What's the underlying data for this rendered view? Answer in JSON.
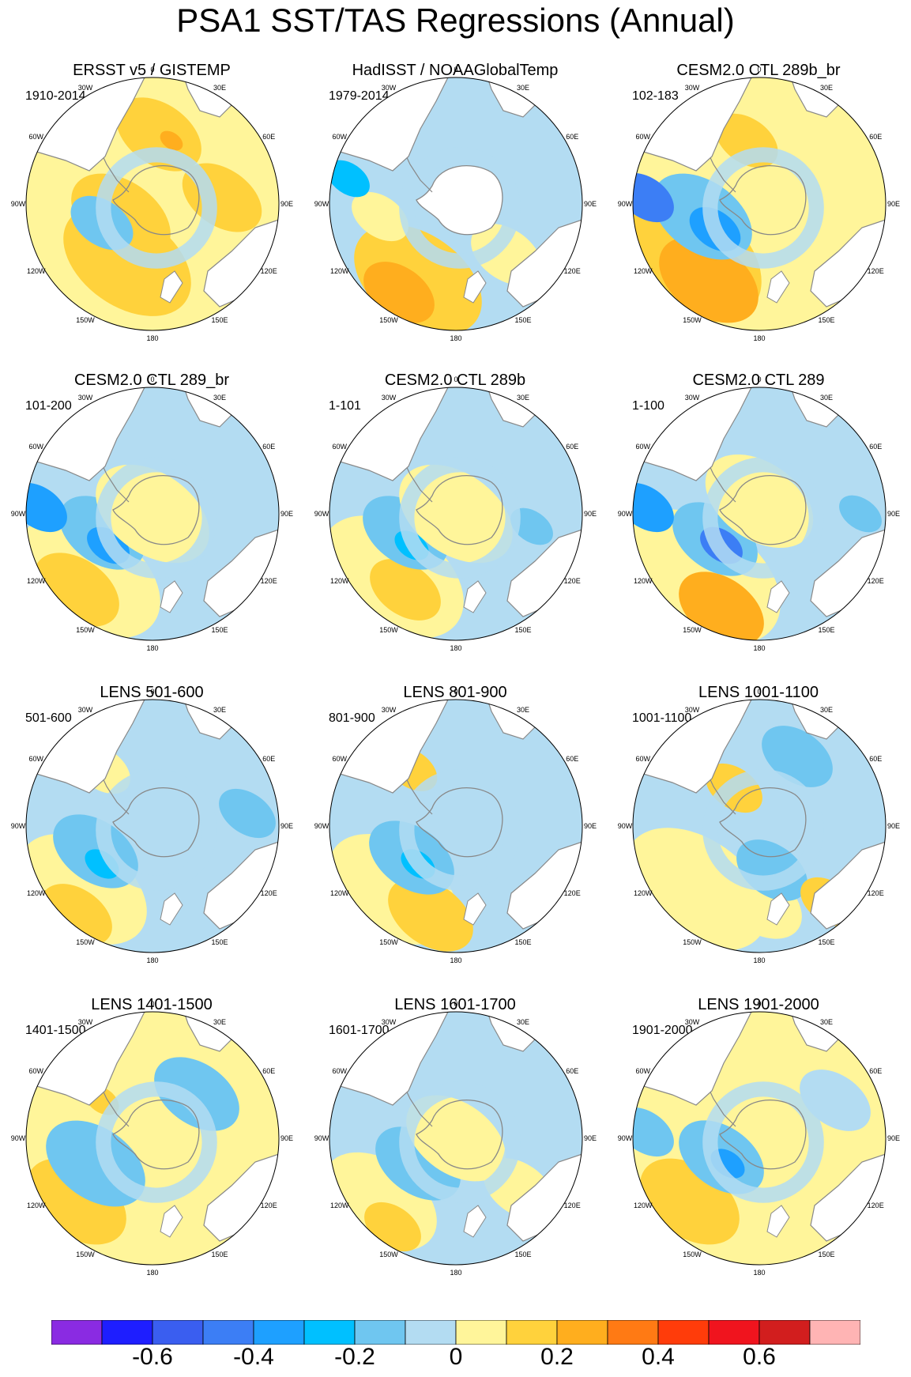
{
  "title": "PSA1 SST/TAS Regressions (Annual)",
  "longitude_labels": [
    "0",
    "30E",
    "60E",
    "90E",
    "120E",
    "150E",
    "180",
    "150W",
    "120W",
    "90W",
    "60W",
    "30W"
  ],
  "panels": [
    {
      "title": "ERSST v5 / GISTEMP",
      "period": "1910-2014"
    },
    {
      "title": "HadISST / NOAAGlobalTemp",
      "period": "1979-2014"
    },
    {
      "title": "CESM2.0 CTL 289b_br",
      "period": "102-183"
    },
    {
      "title": "CESM2.0 CTL 289_br",
      "period": "101-200"
    },
    {
      "title": "CESM2.0 CTL 289b",
      "period": "1-101"
    },
    {
      "title": "CESM2.0 CTL 289",
      "period": "1-100"
    },
    {
      "title": "LENS 501-600",
      "period": "501-600"
    },
    {
      "title": "LENS 801-900",
      "period": "801-900"
    },
    {
      "title": "LENS 1001-1100",
      "period": "1001-1100"
    },
    {
      "title": "LENS 1401-1500",
      "period": "1401-1500"
    },
    {
      "title": "LENS 1601-1700",
      "period": "1601-1700"
    },
    {
      "title": "LENS 1901-2000",
      "period": "1901-2000"
    }
  ],
  "colorbar": {
    "colors": [
      "#8a2be2",
      "#1e1eff",
      "#3a5ef0",
      "#3c7ef5",
      "#1ea0ff",
      "#00c0ff",
      "#6fc6f0",
      "#b3dcf2",
      "#fff59a",
      "#ffd23c",
      "#ffae1e",
      "#ff7a14",
      "#ff3c0a",
      "#f0141e",
      "#d21e1e",
      "#ffb4b4"
    ],
    "tick_labels": [
      "-0.6",
      "-0.4",
      "-0.2",
      "0",
      "0.2",
      "0.4",
      "0.6"
    ]
  },
  "colors": {
    "land": "#ffffff",
    "coast": "#888888",
    "neutral_positive": "#fff59a",
    "neutral_negative": "#b3dcf2"
  }
}
